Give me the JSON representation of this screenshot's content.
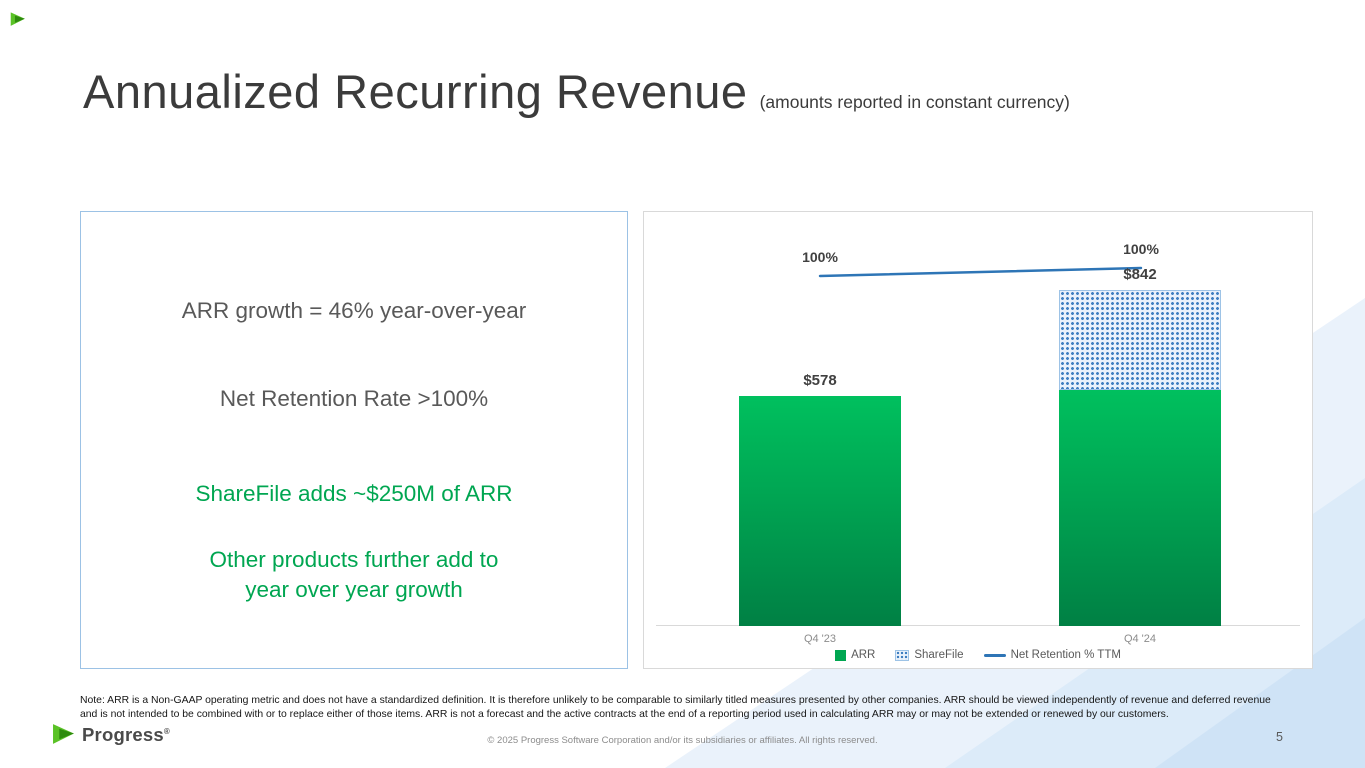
{
  "slide": {
    "title": "Annualized Recurring Revenue",
    "subtitle": "(amounts reported in constant currency)",
    "page_number": "5",
    "logo_text": "Progress",
    "logo_reg": "®",
    "note": "Note: ARR is a Non-GAAP operating metric and does not have a standardized definition.  It is therefore unlikely to be comparable to similarly titled measures presented by other companies. ARR should be viewed independently of revenue and deferred revenue and is not intended to be combined with or to replace either of those items. ARR is not a forecast and the active contracts at the end of a reporting period used in calculating ARR may or may not be extended or renewed by our customers.",
    "copyright": "© 2025 Progress Software Corporation and/or its subsidiaries or affiliates. All rights reserved."
  },
  "highlights": {
    "line1": "ARR growth = 46% year-over-year",
    "line2": "Net Retention Rate >100%",
    "line3": "ShareFile adds ~$250M of ARR",
    "line4a": "Other products further add to",
    "line4b": "year over year growth"
  },
  "chart_data": {
    "type": "bar",
    "stacked": true,
    "title": "",
    "categories": [
      "Q4 '23",
      "Q4 '24"
    ],
    "series": [
      {
        "name": "ARR",
        "values": [
          578,
          592
        ],
        "color": "#00a651"
      },
      {
        "name": "ShareFile",
        "values": [
          0,
          250
        ],
        "color": "#3f7fc1",
        "pattern": "dotted"
      }
    ],
    "total_labels": [
      "$578",
      "$842"
    ],
    "line_series": {
      "name": "Net Retention % TTM",
      "values": [
        100,
        100
      ],
      "labels": [
        "100%",
        "100%"
      ],
      "color": "#2e75b6"
    },
    "legend": [
      "ARR",
      "ShareFile",
      "Net Retention % TTM"
    ],
    "legend_position": "bottom",
    "xlabel": "",
    "ylabel": "",
    "ylim": [
      0,
      900
    ],
    "grid": false,
    "units": "USD millions"
  },
  "colors": {
    "accent_green": "#00a651",
    "bar_green_top": "#00c05e",
    "bar_green_bottom": "#008044",
    "sharefile_blue": "#3f7fc1",
    "nrr_line_blue": "#2e75b6",
    "box_border": "#9cc2e5",
    "title_gray": "#3b3b3b",
    "body_gray": "#595959"
  }
}
